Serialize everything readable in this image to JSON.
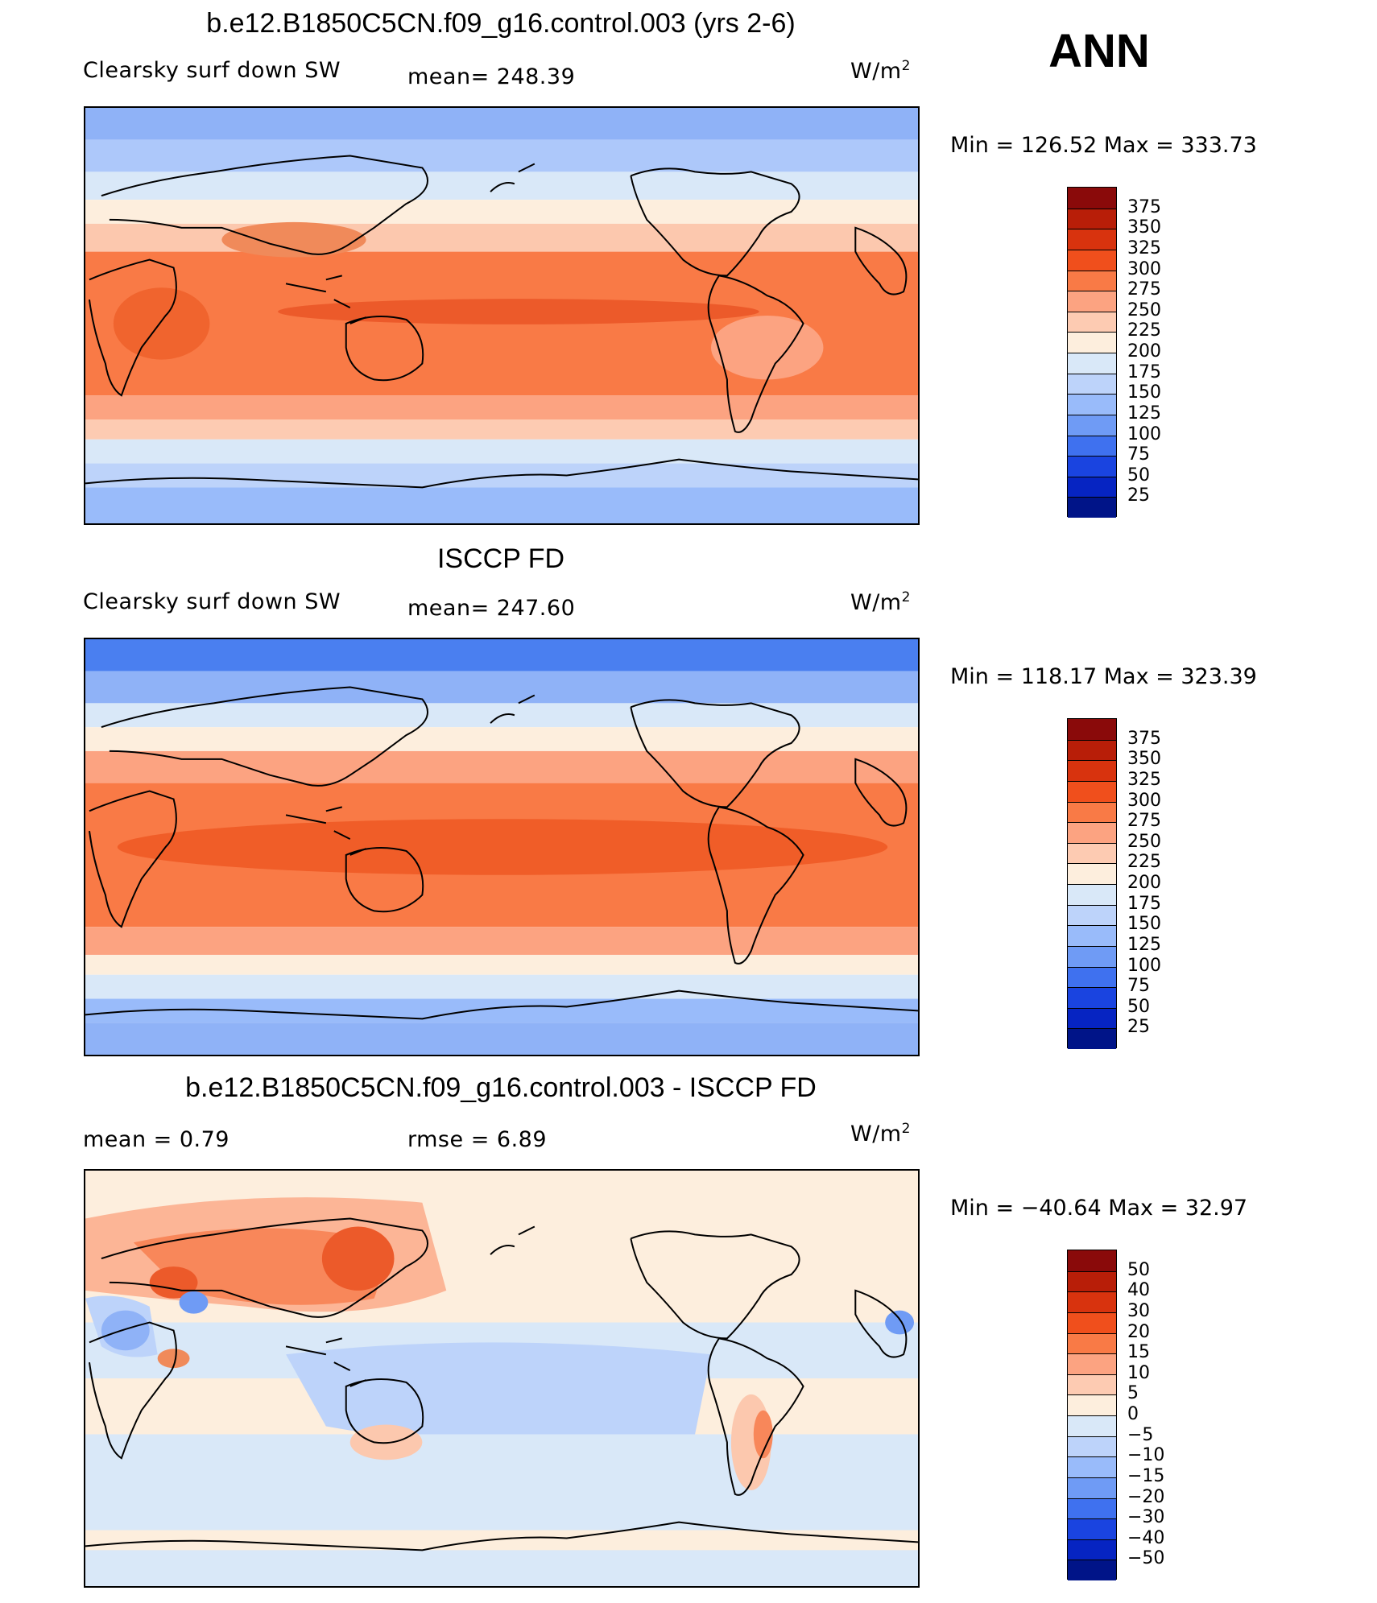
{
  "season": "ANN",
  "panels": [
    {
      "id": "model",
      "title": "b.e12.B1850C5CN.f09_g16.control.003 (yrs 2-6)",
      "left_label": "Clearsky surf down SW",
      "mid_label": "mean=  248.39",
      "units_base": "W/m",
      "units_exp": "2",
      "minmax": "Min  =  126.52  Max  =  333.73"
    },
    {
      "id": "obs",
      "title": "ISCCP FD",
      "left_label": "Clearsky surf down SW",
      "mid_label": "mean=  247.60",
      "units_base": "W/m",
      "units_exp": "2",
      "minmax": "Min  =  118.17  Max  =  323.39"
    },
    {
      "id": "diff",
      "title": "b.e12.B1850C5CN.f09_g16.control.003 - ISCCP FD",
      "left_label": "mean  =      0.79",
      "mid_label": "rmse  =      6.89",
      "units_base": "W/m",
      "units_exp": "2",
      "minmax": "Min  =  −40.64  Max  =      32.97"
    }
  ],
  "colorbars": {
    "absolute": {
      "labels": [
        "375",
        "350",
        "325",
        "300",
        "275",
        "250",
        "225",
        "200",
        "175",
        "150",
        "125",
        "100",
        "75",
        "50",
        "25"
      ],
      "colors": [
        "#8a0a0a",
        "#b81e08",
        "#d8330e",
        "#f04f1c",
        "#f97a46",
        "#fca381",
        "#fdcbb2",
        "#fdeedd",
        "#d9e8f8",
        "#bdd3fa",
        "#99bbfa",
        "#6f9bf5",
        "#3f71ef",
        "#1a44e0",
        "#0624c2",
        "#001488"
      ]
    },
    "difference": {
      "labels": [
        "50",
        "40",
        "30",
        "20",
        "15",
        "10",
        "5",
        "0",
        "−5",
        "−10",
        "−15",
        "−20",
        "−30",
        "−40",
        "−50"
      ],
      "colors": [
        "#8a0a0a",
        "#b81e08",
        "#d8330e",
        "#f04f1c",
        "#f97a46",
        "#fca381",
        "#fdcbb2",
        "#fdeedd",
        "#d9e8f8",
        "#bdd3fa",
        "#99bbfa",
        "#6f9bf5",
        "#3f71ef",
        "#1a44e0",
        "#0624c2",
        "#001488"
      ]
    }
  }
}
